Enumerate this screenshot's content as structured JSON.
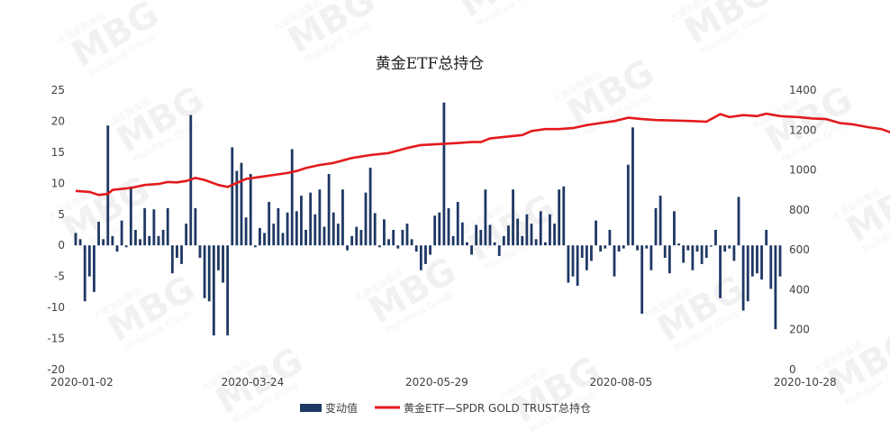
{
  "chart_data": {
    "type": "bar+line",
    "title": "黄金ETF总持仓",
    "x_tick_labels": [
      "2020-01-02",
      "2020-03-24",
      "2020-05-29",
      "2020-08-05",
      "2020-10-28"
    ],
    "y_left": {
      "ticks": [
        25,
        20,
        15,
        10,
        5,
        0,
        -5,
        -10,
        -15,
        -20
      ],
      "range": [
        -20,
        25
      ]
    },
    "y_right": {
      "ticks": [
        1400,
        1200,
        1000,
        800,
        600,
        400,
        200,
        0
      ],
      "range": [
        0,
        1400
      ]
    },
    "series": [
      {
        "name": "变动值",
        "type": "bar",
        "color": "#1f3864",
        "values": [
          2,
          1,
          -9,
          -5,
          -7.5,
          3.8,
          1,
          19.3,
          1.5,
          -1,
          4,
          -0.3,
          9.5,
          2.5,
          1,
          6,
          1.5,
          5.8,
          1.5,
          2.5,
          6,
          -4.5,
          -2,
          -3,
          3.5,
          21,
          6,
          -2,
          -8.5,
          -9,
          -14.5,
          -4,
          -6,
          -14.5,
          15.8,
          12,
          13.3,
          4.5,
          11.5,
          -0.3,
          2.8,
          2,
          7,
          3.5,
          6,
          2,
          5.3,
          15.5,
          5.5,
          8,
          2.5,
          8.5,
          5,
          9,
          3,
          11.5,
          5.3,
          3.5,
          9,
          -0.8,
          1.5,
          3,
          2.5,
          8.5,
          12.5,
          5.2,
          -0.3,
          4.2,
          1,
          2.5,
          -0.5,
          2.5,
          3.5,
          1,
          -1,
          -4,
          -3,
          -1.5,
          4.8,
          5.3,
          23,
          6,
          1.5,
          7,
          3.7,
          0.5,
          -1.5,
          3.3,
          2.5,
          9,
          3.3,
          0.5,
          -1.7,
          1.5,
          3.2,
          9,
          4.3,
          1.5,
          5,
          3.5,
          1,
          5.5,
          0.5,
          5,
          3.5,
          9,
          9.5,
          -6,
          -5,
          -6.5,
          -2,
          -4,
          -2.5,
          4,
          -1,
          -0.5,
          2.5,
          -5,
          -1,
          -0.5,
          13,
          19,
          -0.8,
          -11,
          -0.5,
          -4,
          6,
          8,
          -2,
          -4.5,
          5.5,
          0.3,
          -2.8,
          -0.8,
          -4,
          -1,
          -3,
          -2,
          -0.2,
          2.5,
          -8.5,
          -1,
          -0.5,
          -2.5,
          7.8,
          -10.5,
          -9,
          -5,
          -4.5,
          -5.5,
          2.5,
          -7,
          -13.5,
          -5
        ]
      },
      {
        "name": "黄金ETF—SPDR GOLD TRUST总持仓",
        "type": "line",
        "color": "#e31a1c",
        "axis": "right",
        "points": [
          [
            0,
            895
          ],
          [
            3,
            890
          ],
          [
            5,
            875
          ],
          [
            7,
            880
          ],
          [
            8,
            900
          ],
          [
            12,
            910
          ],
          [
            15,
            925
          ],
          [
            18,
            930
          ],
          [
            20,
            940
          ],
          [
            22,
            938
          ],
          [
            24,
            945
          ],
          [
            26,
            960
          ],
          [
            28,
            950
          ],
          [
            31,
            925
          ],
          [
            33,
            915
          ],
          [
            35,
            935
          ],
          [
            37,
            955
          ],
          [
            40,
            965
          ],
          [
            43,
            975
          ],
          [
            46,
            985
          ],
          [
            48,
            995
          ],
          [
            50,
            1010
          ],
          [
            53,
            1025
          ],
          [
            56,
            1035
          ],
          [
            60,
            1060
          ],
          [
            64,
            1075
          ],
          [
            68,
            1085
          ],
          [
            72,
            1110
          ],
          [
            75,
            1125
          ],
          [
            79,
            1130
          ],
          [
            83,
            1135
          ],
          [
            86,
            1140
          ],
          [
            88,
            1140
          ],
          [
            90,
            1158
          ],
          [
            94,
            1168
          ],
          [
            97,
            1175
          ],
          [
            99,
            1195
          ],
          [
            102,
            1205
          ],
          [
            105,
            1205
          ],
          [
            108,
            1210
          ],
          [
            111,
            1225
          ],
          [
            114,
            1235
          ],
          [
            117,
            1245
          ],
          [
            120,
            1262
          ],
          [
            123,
            1255
          ],
          [
            126,
            1250
          ],
          [
            130,
            1248
          ],
          [
            134,
            1245
          ],
          [
            137,
            1242
          ],
          [
            140,
            1280
          ],
          [
            142,
            1265
          ],
          [
            145,
            1275
          ],
          [
            148,
            1270
          ],
          [
            150,
            1282
          ],
          [
            153,
            1270
          ],
          [
            157,
            1265
          ],
          [
            160,
            1258
          ],
          [
            163,
            1255
          ],
          [
            166,
            1235
          ],
          [
            169,
            1228
          ],
          [
            172,
            1215
          ],
          [
            175,
            1205
          ],
          [
            177,
            1188
          ],
          [
            178,
            1185
          ]
        ]
      }
    ],
    "legend": {
      "position": "bottom"
    },
    "grid": false
  },
  "watermark": {
    "brand": "MBG",
    "line1": "大通金融集团",
    "line2": "MultiBank Group"
  }
}
